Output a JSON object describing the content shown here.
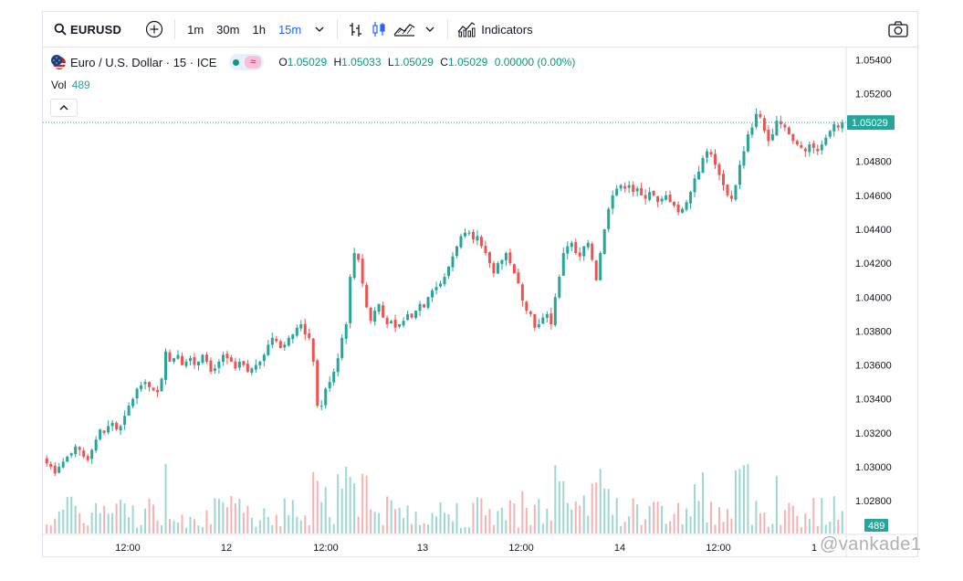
{
  "toolbar": {
    "symbol": "EURUSD",
    "intervals": [
      "1m",
      "30m",
      "1h",
      "15m"
    ],
    "active_interval": "15m",
    "indicators_label": "Indicators"
  },
  "legend": {
    "title": "Euro / U.S. Dollar · 15 · ICE",
    "ohlc": {
      "o_label": "O",
      "o": "1.05029",
      "h_label": "H",
      "h": "1.05033",
      "l_label": "L",
      "l": "1.05029",
      "c_label": "C",
      "c": "1.05029",
      "change": "0.00000 (0.00%)"
    }
  },
  "volume": {
    "label": "Vol",
    "value": "489"
  },
  "watermark": "@vankade1",
  "colors": {
    "up": "#26a69a",
    "down": "#ef5350",
    "accent": "#2962ff",
    "price_line": "#26a69a"
  },
  "chart_data": {
    "type": "candlestick",
    "y_ticks": [
      "1.05400",
      "1.05200",
      "1.04800",
      "1.04600",
      "1.04400",
      "1.04200",
      "1.04000",
      "1.03800",
      "1.03600",
      "1.03400",
      "1.03200",
      "1.03000",
      "1.02800"
    ],
    "ylim": [
      1.0265,
      1.0545
    ],
    "x_ticks": [
      "12:00",
      "12",
      "12:00",
      "13",
      "12:00",
      "14",
      "12:00",
      "1"
    ],
    "last_price_label": "1.05029",
    "last_price": 1.05029,
    "volume_label": "489",
    "close_series": [
      1.0302,
      1.03,
      1.0296,
      1.03,
      1.0303,
      1.0306,
      1.0308,
      1.0312,
      1.031,
      1.0306,
      1.0304,
      1.031,
      1.0316,
      1.0322,
      1.032,
      1.0324,
      1.0326,
      1.0322,
      1.0324,
      1.033,
      1.0336,
      1.034,
      1.0346,
      1.0348,
      1.035,
      1.0347,
      1.0345,
      1.0344,
      1.0352,
      1.0368,
      1.0362,
      1.0364,
      1.0366,
      1.036,
      1.0362,
      1.0364,
      1.036,
      1.0362,
      1.0366,
      1.0362,
      1.0356,
      1.0358,
      1.0362,
      1.0366,
      1.0364,
      1.0362,
      1.0358,
      1.0362,
      1.036,
      1.0356,
      1.0358,
      1.036,
      1.0362,
      1.0366,
      1.0372,
      1.0376,
      1.0374,
      1.037,
      1.0372,
      1.0376,
      1.0378,
      1.0382,
      1.0384,
      1.0378,
      1.0376,
      1.0362,
      1.0336,
      1.0336,
      1.0346,
      1.035,
      1.0356,
      1.0364,
      1.0376,
      1.0384,
      1.0412,
      1.0426,
      1.0422,
      1.0408,
      1.0394,
      1.0386,
      1.0392,
      1.0396,
      1.0388,
      1.0384,
      1.0386,
      1.0382,
      1.0384,
      1.0386,
      1.039,
      1.0388,
      1.0392,
      1.0396,
      1.0394,
      1.04,
      1.0404,
      1.0406,
      1.0408,
      1.0412,
      1.0418,
      1.0424,
      1.043,
      1.0436,
      1.0438,
      1.0438,
      1.0434,
      1.0436,
      1.043,
      1.0426,
      1.042,
      1.0414,
      1.042,
      1.0422,
      1.0426,
      1.042,
      1.0414,
      1.0408,
      1.0398,
      1.0392,
      1.039,
      1.0382,
      1.0384,
      1.0388,
      1.039,
      1.0384,
      1.04,
      1.0412,
      1.0426,
      1.043,
      1.0432,
      1.0426,
      1.0424,
      1.043,
      1.0432,
      1.0422,
      1.041,
      1.0426,
      1.044,
      1.0452,
      1.046,
      1.0464,
      1.0466,
      1.0464,
      1.0466,
      1.0462,
      1.0464,
      1.046,
      1.0458,
      1.0462,
      1.046,
      1.0456,
      1.0458,
      1.046,
      1.0456,
      1.0454,
      1.045,
      1.0452,
      1.0456,
      1.0462,
      1.047,
      1.0474,
      1.0482,
      1.0486,
      1.0484,
      1.0478,
      1.0472,
      1.0466,
      1.046,
      1.0458,
      1.0466,
      1.0478,
      1.0486,
      1.0496,
      1.05,
      1.0508,
      1.0506,
      1.0498,
      1.0492,
      1.0496,
      1.0504,
      1.0502,
      1.05,
      1.0496,
      1.0492,
      1.049,
      1.0488,
      1.0486,
      1.049,
      1.0488,
      1.0486,
      1.049,
      1.0494,
      1.0498,
      1.0502,
      1.05,
      1.0503
    ]
  }
}
